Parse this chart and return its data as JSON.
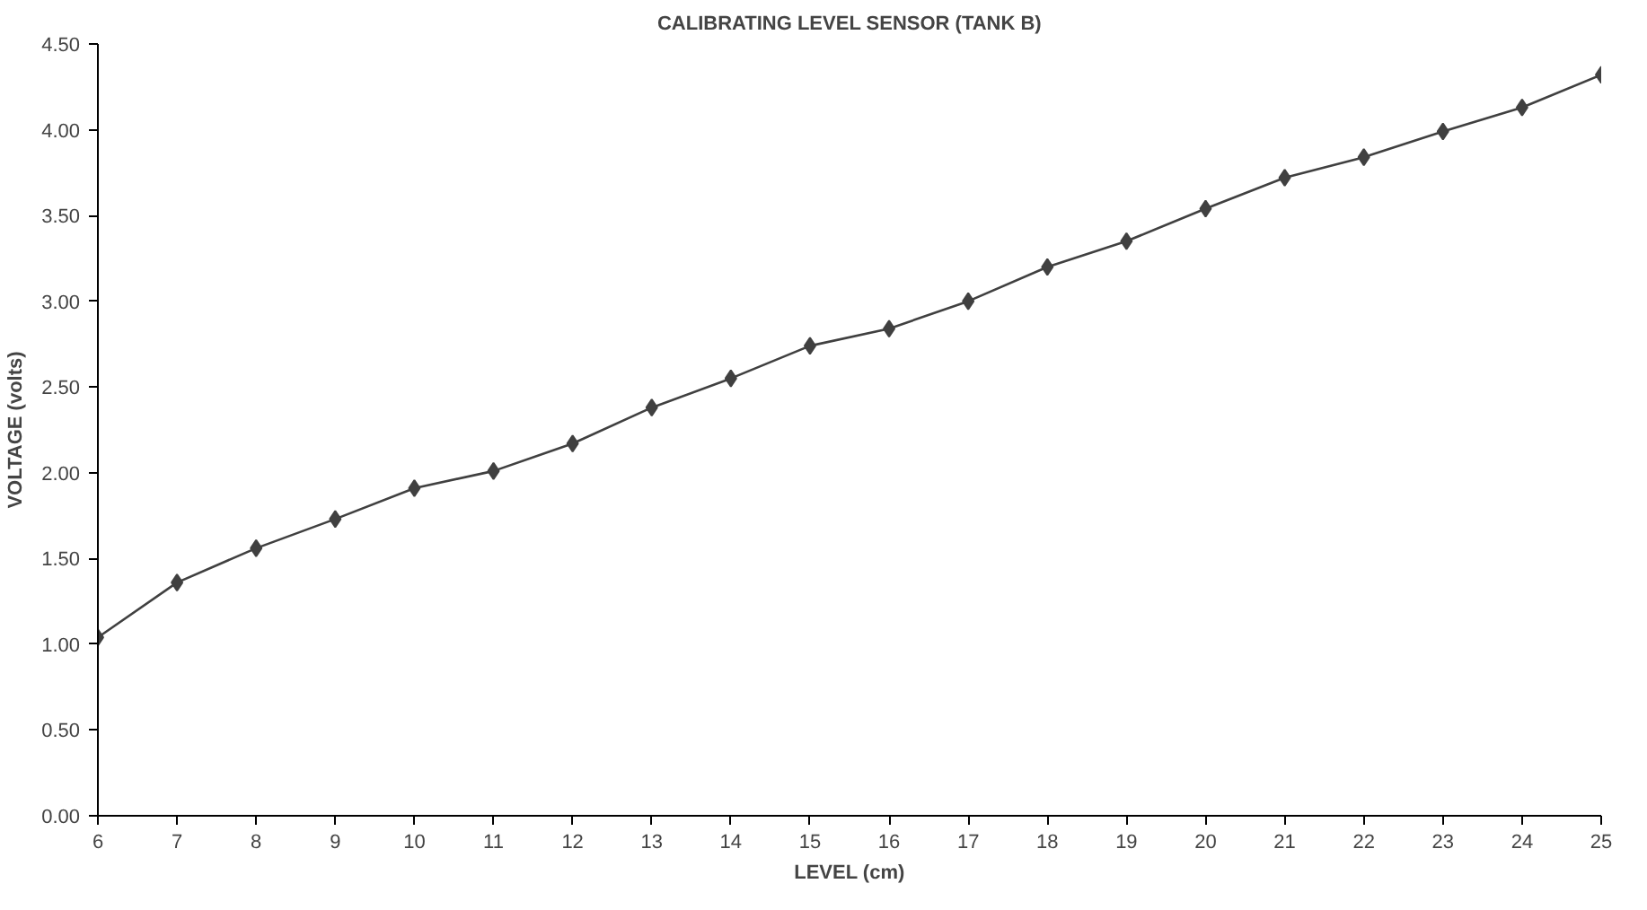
{
  "chart_data": {
    "type": "line",
    "title": "CALIBRATING LEVEL SENSOR (TANK B)",
    "xlabel": "LEVEL (cm)",
    "ylabel": "VOLTAGE (volts)",
    "x": [
      6,
      7,
      8,
      9,
      10,
      11,
      12,
      13,
      14,
      15,
      16,
      17,
      18,
      19,
      20,
      21,
      22,
      23,
      24,
      25
    ],
    "series": [
      {
        "color": "#404040",
        "values": [
          1.04,
          1.36,
          1.56,
          1.73,
          1.91,
          2.01,
          2.17,
          2.38,
          2.55,
          2.74,
          2.84,
          3.0,
          3.2,
          3.35,
          3.54,
          3.72,
          3.84,
          3.99,
          4.13,
          4.32
        ]
      }
    ],
    "xlim": [
      6,
      25
    ],
    "xticks": [
      6,
      7,
      8,
      9,
      10,
      11,
      12,
      13,
      14,
      15,
      16,
      17,
      18,
      19,
      20,
      21,
      22,
      23,
      24,
      25
    ],
    "ylim": [
      0,
      4.5
    ],
    "yticks": [
      {
        "value": 0,
        "label": "0.00"
      },
      {
        "value": 0.5,
        "label": "0.50"
      },
      {
        "value": 1,
        "label": "1.00"
      },
      {
        "value": 1.5,
        "label": "1.50"
      },
      {
        "value": 2,
        "label": "2.00"
      },
      {
        "value": 2.5,
        "label": "2.50"
      },
      {
        "value": 3,
        "label": "3.00"
      },
      {
        "value": 3.5,
        "label": "3.50"
      },
      {
        "value": 4,
        "label": "4.00"
      },
      {
        "value": 4.5,
        "label": "4.50"
      }
    ],
    "marker": "diamond",
    "line_style": "solid",
    "grid": false
  }
}
